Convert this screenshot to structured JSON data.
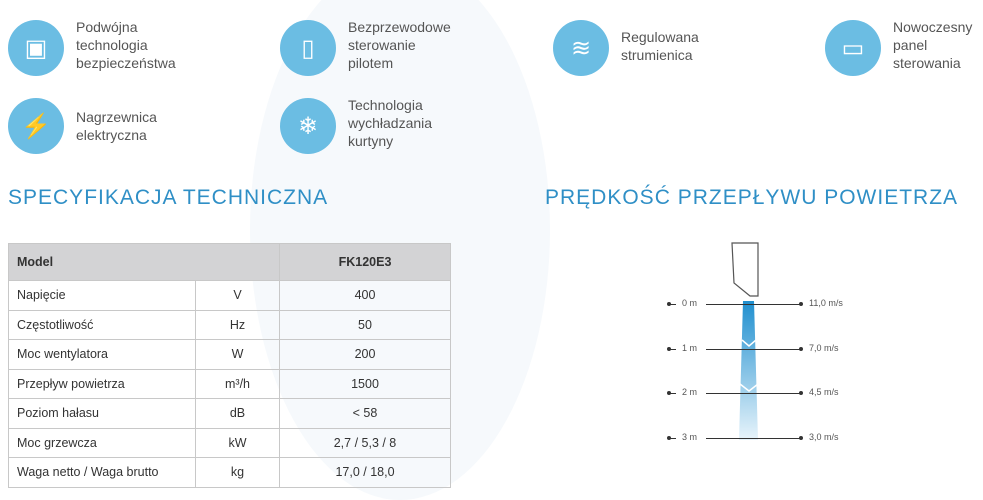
{
  "features": [
    {
      "icon": "chip-icon",
      "text": "Podwójna\ntechnologia\nbezpieczeństwa"
    },
    {
      "icon": "remote-control-icon",
      "text": "Bezprzewodowe\nsterowanie\npilotem"
    },
    {
      "icon": "airflow-icon",
      "text": "Regulowana\nstrumienica"
    },
    {
      "icon": "control-panel-icon",
      "text": "Nowoczesny\npanel\nsterowania"
    },
    {
      "icon": "heater-icon",
      "text": "Nagrzewnica\nelektryczna"
    },
    {
      "icon": "cooling-icon",
      "text": "Technologia\nwychładzania\nkurtyny"
    }
  ],
  "spec_title": "SPECYFIKACJA TECHNICZNA",
  "airflow_title": "PRĘDKOŚĆ PRZEPŁYWU POWIETRZA",
  "table": {
    "header": [
      "Model",
      "FK120E3"
    ],
    "rows": [
      [
        "Napięcie",
        "V",
        "400"
      ],
      [
        "Częstotliwość",
        "Hz",
        "50"
      ],
      [
        "Moc wentylatora",
        "W",
        "200"
      ],
      [
        "Przepływ powietrza",
        "m³/h",
        "1500"
      ],
      [
        "Poziom hałasu",
        "dB",
        "< 58"
      ],
      [
        "Moc grzewcza",
        "kW",
        "2,7 / 5,3 / 8"
      ],
      [
        "Waga netto / Waga brutto",
        "kg",
        "17,0 / 18,0"
      ]
    ]
  },
  "airflow": [
    {
      "distance": "0 m",
      "speed": "11,0 m/s"
    },
    {
      "distance": "1 m",
      "speed": "7,0 m/s"
    },
    {
      "distance": "2 m",
      "speed": "4,5 m/s"
    },
    {
      "distance": "3 m",
      "speed": "3,0 m/s"
    }
  ],
  "colors": {
    "accent": "#2f8fc6",
    "icon_bg": "#6bbde3"
  }
}
